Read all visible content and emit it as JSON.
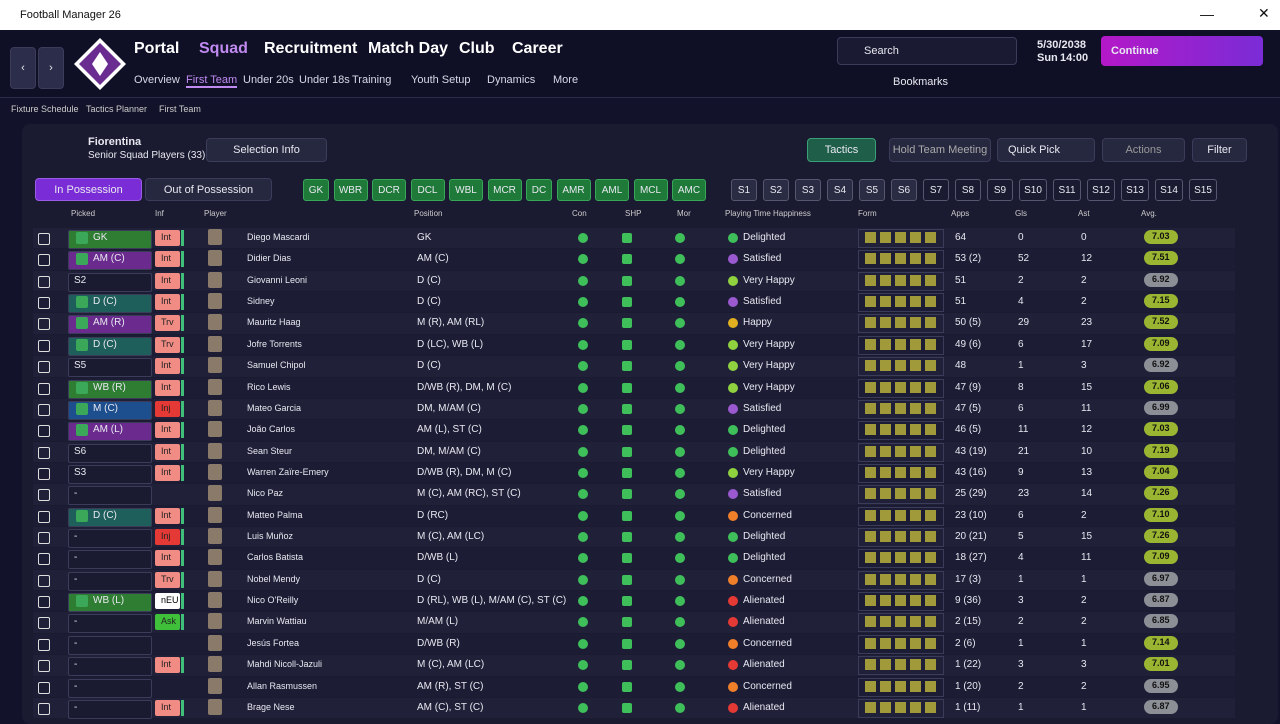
{
  "window": {
    "title": "Football Manager 26"
  },
  "nav": {
    "main": [
      "Portal",
      "Squad",
      "Recruitment",
      "Match Day",
      "Club",
      "Career"
    ],
    "sub": [
      "Overview",
      "First Team",
      "Under 20s",
      "Under 18s",
      "Training",
      "Youth Setup",
      "Dynamics",
      "More"
    ],
    "search": "Search",
    "date": "5/30/2038",
    "day": "Sun",
    "time": "14:00",
    "continue": "Continue",
    "bookmarks": "Bookmarks"
  },
  "breadcrumb": [
    "Fixture Schedule",
    "Tactics Planner",
    "First Team"
  ],
  "team": {
    "name": "Fiorentina",
    "subtitle": "Senior Squad Players (33)"
  },
  "toolbar": {
    "selection_info": "Selection Info",
    "tactics": "Tactics",
    "meeting": "Hold Team Meeting",
    "quick_pick": "Quick Pick",
    "actions": "Actions",
    "filter": "Filter"
  },
  "tabs": [
    "In Possession",
    "Out of Possession"
  ],
  "positions": [
    "GK",
    "WBR",
    "DCR",
    "DCL",
    "WBL",
    "MCR",
    "DC",
    "AMR",
    "AML",
    "MCL",
    "AMC"
  ],
  "subs": [
    "S1",
    "S2",
    "S3",
    "S4",
    "S5",
    "S6",
    "S7",
    "S8",
    "S9",
    "S10",
    "S11",
    "S12",
    "S13",
    "S14",
    "S15"
  ],
  "table": {
    "columns": [
      "Picked",
      "Inf",
      "Player",
      "Position",
      "Con",
      "SHP",
      "Mor",
      "Playing Time Happiness",
      "Form",
      "Apps",
      "Gls",
      "Ast",
      "Avg."
    ],
    "rows": [
      {
        "picked": "GK",
        "color": "#2e7d32",
        "inf": "Int",
        "inf_color": "#f08c84",
        "name": "Diego Mascardi",
        "position": "GK",
        "happiness": "Delighted",
        "happiness_color": "#3fbf5a",
        "apps": "64",
        "gls": 0,
        "ast": 0,
        "avg": "7.03",
        "avg_color": "#9ab531"
      },
      {
        "picked": "AM (C)",
        "color": "#6a2a8e",
        "inf": "Int",
        "inf_color": "#f08c84",
        "name": "Didier Dias",
        "position": "AM (C)",
        "happiness": "Satisfied",
        "happiness_color": "#9b59d0",
        "apps": "53 (2)",
        "gls": 52,
        "ast": 12,
        "avg": "7.51",
        "avg_color": "#9ab531"
      },
      {
        "picked": "S2",
        "inf": "Int",
        "inf_color": "#f08c84",
        "name": "Giovanni Leoni",
        "position": "D (C)",
        "happiness": "Very Happy",
        "happiness_color": "#8fd13f",
        "apps": "51",
        "gls": 2,
        "ast": 2,
        "avg": "6.92",
        "avg_color": "#8d8f96"
      },
      {
        "picked": "D (C)",
        "color": "#1f5f5b",
        "inf": "Int",
        "inf_color": "#f08c84",
        "name": "Sidney",
        "position": "D (C)",
        "happiness": "Satisfied",
        "happiness_color": "#9b59d0",
        "apps": "51",
        "gls": 4,
        "ast": 2,
        "avg": "7.15",
        "avg_color": "#9ab531"
      },
      {
        "picked": "AM (R)",
        "color": "#6a2a8e",
        "inf": "Trv",
        "inf_color": "#f08c84",
        "name": "Mauritz Haag",
        "position": "M (R), AM (RL)",
        "happiness": "Happy",
        "happiness_color": "#e0b020",
        "apps": "50 (5)",
        "gls": 29,
        "ast": 23,
        "avg": "7.52",
        "avg_color": "#9ab531"
      },
      {
        "picked": "D (C)",
        "color": "#1f5f5b",
        "inf": "Trv",
        "inf_color": "#f08c84",
        "name": "Jofre Torrents",
        "position": "D (LC), WB (L)",
        "happiness": "Very Happy",
        "happiness_color": "#8fd13f",
        "apps": "49 (6)",
        "gls": 6,
        "ast": 17,
        "avg": "7.09",
        "avg_color": "#9ab531"
      },
      {
        "picked": "S5",
        "inf": "Int",
        "inf_color": "#f08c84",
        "name": "Samuel Chipol",
        "position": "D (C)",
        "happiness": "Very Happy",
        "happiness_color": "#8fd13f",
        "apps": "48",
        "gls": 1,
        "ast": 3,
        "avg": "6.92",
        "avg_color": "#8d8f96"
      },
      {
        "picked": "WB (R)",
        "color": "#2e7d32",
        "inf": "Int",
        "inf_color": "#f08c84",
        "name": "Rico Lewis",
        "position": "D/WB (R), DM, M (C)",
        "happiness": "Very Happy",
        "happiness_color": "#8fd13f",
        "apps": "47 (9)",
        "gls": 8,
        "ast": 15,
        "avg": "7.06",
        "avg_color": "#9ab531"
      },
      {
        "picked": "M (C)",
        "color": "#1d4f8f",
        "inf": "Inj",
        "inf_color": "#e53935",
        "name": "Mateo Garcia",
        "position": "DM, M/AM (C)",
        "happiness": "Satisfied",
        "happiness_color": "#9b59d0",
        "apps": "47 (5)",
        "gls": 6,
        "ast": 11,
        "avg": "6.99",
        "avg_color": "#8d8f96"
      },
      {
        "picked": "AM (L)",
        "color": "#6a2a8e",
        "inf": "Int",
        "inf_color": "#f08c84",
        "name": "João Carlos",
        "position": "AM (L), ST (C)",
        "happiness": "Delighted",
        "happiness_color": "#3fbf5a",
        "apps": "46 (5)",
        "gls": 11,
        "ast": 12,
        "avg": "7.03",
        "avg_color": "#9ab531"
      },
      {
        "picked": "S6",
        "inf": "Int",
        "inf_color": "#f08c84",
        "name": "Sean Steur",
        "position": "DM, M/AM (C)",
        "happiness": "Delighted",
        "happiness_color": "#3fbf5a",
        "apps": "43 (19)",
        "gls": 21,
        "ast": 10,
        "avg": "7.19",
        "avg_color": "#9ab531"
      },
      {
        "picked": "S3",
        "inf": "Int",
        "inf_color": "#f08c84",
        "name": "Warren Zaïre-Emery",
        "position": "D/WB (R), DM, M (C)",
        "happiness": "Very Happy",
        "happiness_color": "#8fd13f",
        "apps": "43 (16)",
        "gls": 9,
        "ast": 13,
        "avg": "7.04",
        "avg_color": "#9ab531"
      },
      {
        "picked": "-",
        "name": "Nico Paz",
        "position": "M (C), AM (RC), ST (C)",
        "happiness": "Satisfied",
        "happiness_color": "#9b59d0",
        "apps": "25 (29)",
        "gls": 23,
        "ast": 14,
        "avg": "7.26",
        "avg_color": "#9ab531"
      },
      {
        "picked": "D (C)",
        "color": "#1f5f5b",
        "inf": "Int",
        "inf_color": "#f08c84",
        "name": "Matteo Palma",
        "position": "D (RC)",
        "happiness": "Concerned",
        "happiness_color": "#f07f2a",
        "apps": "23 (10)",
        "gls": 6,
        "ast": 2,
        "avg": "7.10",
        "avg_color": "#9ab531"
      },
      {
        "picked": "-",
        "inf": "Inj",
        "inf_color": "#e53935",
        "name": "Luis Muñoz",
        "position": "M (C), AM (LC)",
        "happiness": "Delighted",
        "happiness_color": "#3fbf5a",
        "apps": "20 (21)",
        "gls": 5,
        "ast": 15,
        "avg": "7.26",
        "avg_color": "#9ab531"
      },
      {
        "picked": "-",
        "inf": "Int",
        "inf_color": "#f08c84",
        "name": "Carlos Batista",
        "position": "D/WB (L)",
        "happiness": "Delighted",
        "happiness_color": "#3fbf5a",
        "apps": "18 (27)",
        "gls": 4,
        "ast": 11,
        "avg": "7.09",
        "avg_color": "#9ab531"
      },
      {
        "picked": "-",
        "inf": "Trv",
        "inf_color": "#f08c84",
        "name": "Nobel Mendy",
        "position": "D (C)",
        "happiness": "Concerned",
        "happiness_color": "#f07f2a",
        "apps": "17 (3)",
        "gls": 1,
        "ast": 1,
        "avg": "6.97",
        "avg_color": "#8d8f96"
      },
      {
        "picked": "WB (L)",
        "color": "#2e7d32",
        "inf": "nEU",
        "inf_color": "#ffffff",
        "name": "Nico O'Reilly",
        "position": "D (RL), WB (L), M/AM (C), ST (C)",
        "happiness": "Alienated",
        "happiness_color": "#e53935",
        "apps": "9 (36)",
        "gls": 3,
        "ast": 2,
        "avg": "6.87",
        "avg_color": "#8d8f96"
      },
      {
        "picked": "-",
        "inf": "Ask",
        "inf_color": "#3fbf3a",
        "name": "Marvin Wattiau",
        "position": "M/AM (L)",
        "happiness": "Alienated",
        "happiness_color": "#e53935",
        "apps": "2 (15)",
        "gls": 2,
        "ast": 2,
        "avg": "6.85",
        "avg_color": "#8d8f96"
      },
      {
        "picked": "-",
        "name": "Jesús Fortea",
        "position": "D/WB (R)",
        "happiness": "Concerned",
        "happiness_color": "#f07f2a",
        "apps": "2 (6)",
        "gls": 1,
        "ast": 1,
        "avg": "7.14",
        "avg_color": "#9ab531"
      },
      {
        "picked": "-",
        "inf": "Int",
        "inf_color": "#f08c84",
        "name": "Mahdi Nicoll-Jazuli",
        "position": "M (C), AM (LC)",
        "happiness": "Alienated",
        "happiness_color": "#e53935",
        "apps": "1 (22)",
        "gls": 3,
        "ast": 3,
        "avg": "7.01",
        "avg_color": "#9ab531"
      },
      {
        "picked": "-",
        "name": "Allan Rasmussen",
        "position": "AM (R), ST (C)",
        "happiness": "Concerned",
        "happiness_color": "#f07f2a",
        "apps": "1 (20)",
        "gls": 2,
        "ast": 2,
        "avg": "6.95",
        "avg_color": "#8d8f96"
      },
      {
        "picked": "-",
        "inf": "Int",
        "inf_color": "#f08c84",
        "name": "Brage Nese",
        "position": "AM (C), ST (C)",
        "happiness": "Alienated",
        "happiness_color": "#e53935",
        "apps": "1 (11)",
        "gls": 1,
        "ast": 1,
        "avg": "6.87",
        "avg_color": "#8d8f96"
      }
    ]
  }
}
